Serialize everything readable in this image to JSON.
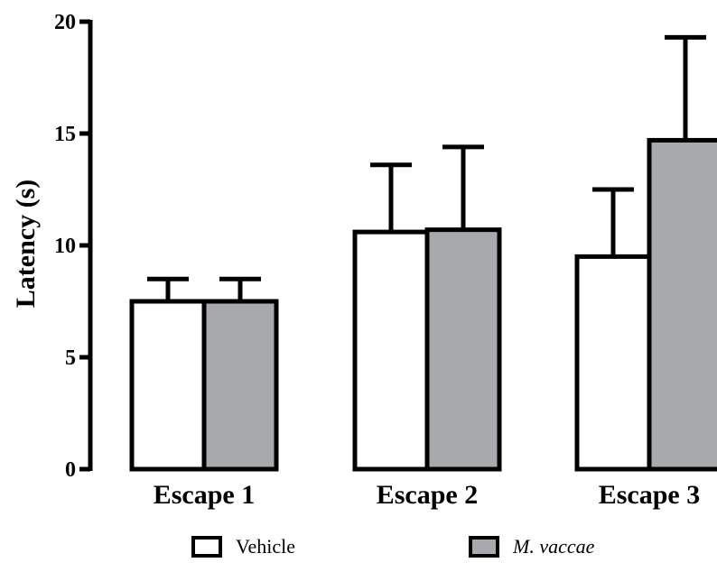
{
  "chart_data": {
    "type": "bar",
    "ylabel": "Latency (s)",
    "xlabel": "",
    "ylim": [
      0,
      20
    ],
    "yticks": [
      0,
      5,
      10,
      15,
      20
    ],
    "categories": [
      "Escape 1",
      "Escape 2",
      "Escape 3"
    ],
    "series": [
      {
        "name": "Vehicle",
        "values": [
          7.5,
          10.6,
          9.5
        ],
        "errors": [
          1.0,
          3.0,
          3.0
        ],
        "color": "#ffffff"
      },
      {
        "name": "M. vaccae",
        "values": [
          7.5,
          10.7,
          14.7
        ],
        "errors": [
          1.0,
          3.7,
          4.6
        ],
        "color": "#a8a9ad"
      }
    ],
    "legend_position": "bottom",
    "grid": false
  }
}
